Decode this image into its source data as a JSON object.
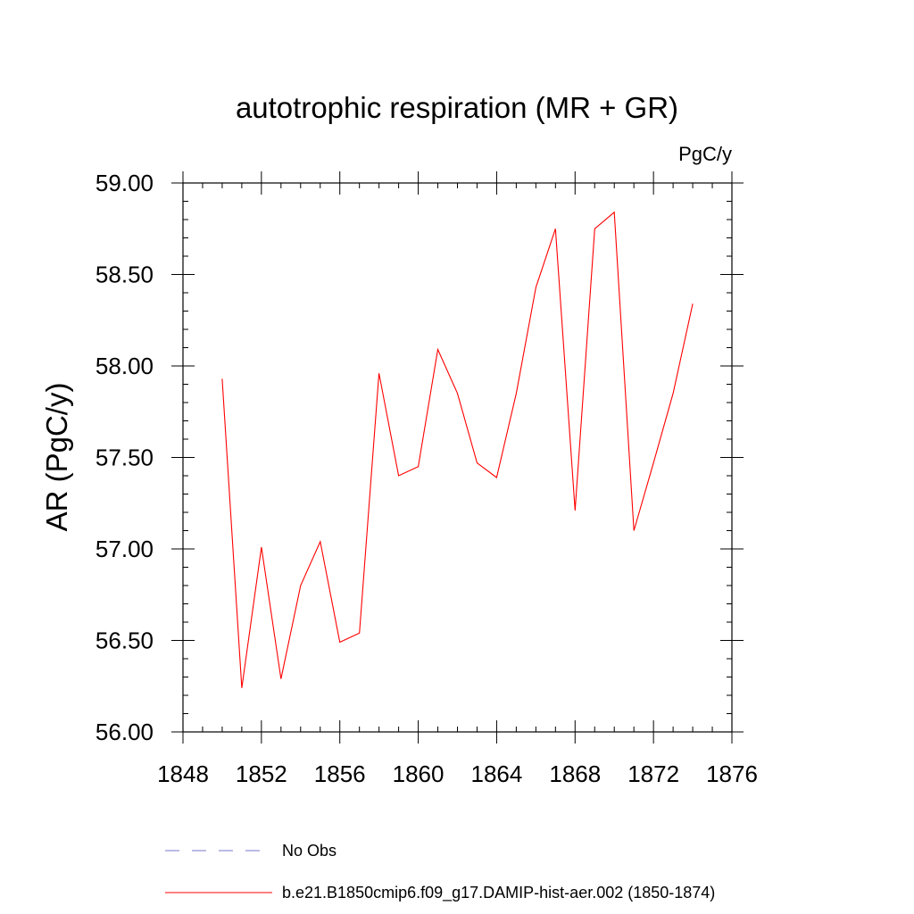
{
  "chart_data": {
    "type": "line",
    "title": "autotrophic respiration (MR + GR)",
    "units": "PgC/y",
    "xlabel": "",
    "ylabel": "AR  (PgC/y)",
    "xlim": [
      1848,
      1876
    ],
    "ylim": [
      56.0,
      59.0
    ],
    "x_ticks": [
      1848,
      1852,
      1856,
      1860,
      1864,
      1868,
      1872,
      1876
    ],
    "x_tick_labels": [
      "1848",
      "1852",
      "1856",
      "1860",
      "1864",
      "1868",
      "1872",
      "1876"
    ],
    "y_ticks": [
      56.0,
      56.5,
      57.0,
      57.5,
      58.0,
      58.5,
      59.0
    ],
    "y_tick_labels": [
      "56.00",
      "56.50",
      "57.00",
      "57.50",
      "58.00",
      "58.50",
      "59.00"
    ],
    "grid": false,
    "legend_position": "bottom",
    "series": [
      {
        "name": "b.e21.B1850cmip6.f09_g17.DAMIP-hist-aer.002 (1850-1874)",
        "color": "#ff0000",
        "dash": "solid",
        "x": [
          1850,
          1851,
          1852,
          1853,
          1854,
          1855,
          1856,
          1857,
          1858,
          1859,
          1860,
          1861,
          1862,
          1863,
          1864,
          1865,
          1866,
          1867,
          1868,
          1869,
          1870,
          1871,
          1872,
          1873,
          1874
        ],
        "y": [
          57.93,
          56.24,
          57.01,
          56.29,
          56.8,
          57.04,
          56.49,
          56.54,
          57.96,
          57.4,
          57.45,
          58.09,
          57.85,
          57.47,
          57.39,
          57.85,
          58.43,
          58.75,
          57.21,
          58.75,
          58.84,
          57.1,
          57.47,
          57.85,
          58.34
        ]
      },
      {
        "name": "No Obs",
        "color": "#7777cc",
        "dash": "dashed",
        "x": [],
        "y": []
      }
    ]
  }
}
